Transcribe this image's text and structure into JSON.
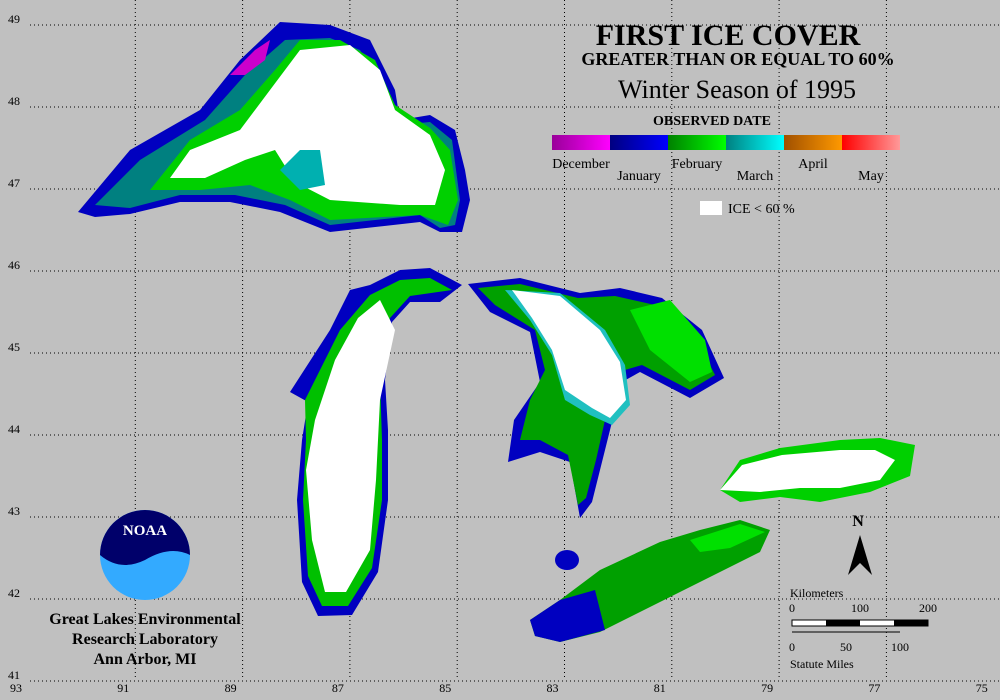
{
  "title": "FIRST ICE COVER",
  "subtitle": "GREATER THAN OR EQUAL TO 60%",
  "season": "Winter Season of 1995",
  "legend": {
    "title": "OBSERVED DATE",
    "months": [
      "December",
      "January",
      "February",
      "March",
      "April",
      "May"
    ],
    "ice_label": "ICE < 60 %"
  },
  "latitude_labels": [
    "49",
    "48",
    "47",
    "46",
    "45",
    "44",
    "43",
    "42",
    "41"
  ],
  "longitude_labels": [
    "93",
    "91",
    "89",
    "87",
    "85",
    "83",
    "81",
    "79",
    "77",
    "75"
  ],
  "scale": {
    "km_title": "Kilometers",
    "km_ticks": [
      "0",
      "100",
      "200"
    ],
    "mi_ticks": [
      "0",
      "50",
      "100"
    ],
    "mi_title": "Statute Miles"
  },
  "north": "N",
  "logo": "NOAA",
  "lab": [
    "Great Lakes Environmental",
    "Research Laboratory",
    "Ann Arbor, MI"
  ]
}
